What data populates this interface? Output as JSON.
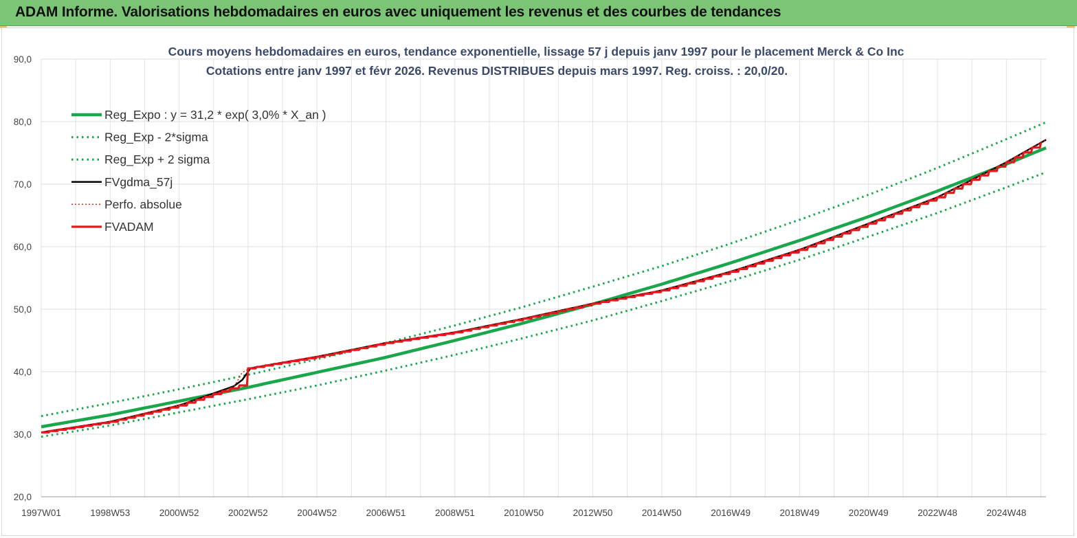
{
  "header": {
    "title": "ADAM Informe. Valorisations hebdomadaires en euros avec uniquement les revenus et des courbes de tendances"
  },
  "chart_data": {
    "type": "line",
    "title": "Cours moyens hebdomadaires en euros, tendance exponentielle, lissage 57 j depuis janv 1997 pour le placement Merck & Co Inc",
    "subtitle": "Cotations entre janv 1997 et févr 2026. Revenus DISTRIBUES depuis mars 1997. Reg. croiss. : 20,0/20.",
    "xlabel": "",
    "ylabel": "",
    "ylim": [
      20,
      90
    ],
    "yticks": [
      "20,0",
      "30,0",
      "40,0",
      "50,0",
      "60,0",
      "70,0",
      "80,0",
      "90,0"
    ],
    "xlim": [
      1997.0,
      2026.15
    ],
    "xticks": [
      {
        "label": "1997W01",
        "x": 1997.0
      },
      {
        "label": "1998W53",
        "x": 1999.0
      },
      {
        "label": "2000W52",
        "x": 2001.0
      },
      {
        "label": "2002W52",
        "x": 2003.0
      },
      {
        "label": "2004W52",
        "x": 2005.0
      },
      {
        "label": "2006W51",
        "x": 2007.0
      },
      {
        "label": "2008W51",
        "x": 2009.0
      },
      {
        "label": "2010W50",
        "x": 2011.0
      },
      {
        "label": "2012W50",
        "x": 2013.0
      },
      {
        "label": "2014W50",
        "x": 2015.0
      },
      {
        "label": "2016W49",
        "x": 2017.0
      },
      {
        "label": "2018W49",
        "x": 2019.0
      },
      {
        "label": "2020W49",
        "x": 2021.0
      },
      {
        "label": "2022W48",
        "x": 2023.0
      },
      {
        "label": "2024W48",
        "x": 2025.0
      }
    ],
    "grid": true,
    "legend_position": "top-left",
    "series": [
      {
        "name": "Reg_Expo : y = 31,2 * exp( 3,0% *  X_an )",
        "style": "solid-thick",
        "color": "#1aa64b",
        "x": [
          1997,
          1999,
          2001,
          2003,
          2005,
          2007,
          2009,
          2011,
          2013,
          2015,
          2017,
          2019,
          2021,
          2023,
          2025,
          2026.15
        ],
        "values": [
          31.2,
          33.1,
          35.3,
          37.5,
          39.9,
          42.3,
          45.0,
          47.8,
          50.8,
          54.0,
          57.4,
          61.0,
          64.8,
          68.9,
          73.2,
          75.8
        ]
      },
      {
        "name": "Reg_Exp - 2*sigma",
        "style": "dotted",
        "color": "#1aa64b",
        "x": [
          1997,
          1999,
          2001,
          2003,
          2005,
          2007,
          2009,
          2011,
          2013,
          2015,
          2017,
          2019,
          2021,
          2023,
          2025,
          2026.15
        ],
        "values": [
          29.6,
          31.4,
          33.5,
          35.6,
          37.8,
          40.2,
          42.7,
          45.4,
          48.2,
          51.3,
          54.5,
          57.9,
          61.6,
          65.4,
          69.5,
          71.9
        ]
      },
      {
        "name": "Reg_Exp + 2 sigma",
        "style": "dotted",
        "color": "#1aa64b",
        "x": [
          1997,
          1999,
          2001,
          2003,
          2005,
          2007,
          2009,
          2011,
          2013,
          2015,
          2017,
          2019,
          2021,
          2023,
          2025,
          2026.15
        ],
        "values": [
          32.9,
          35.0,
          37.2,
          39.5,
          42.0,
          44.6,
          47.4,
          50.4,
          53.6,
          56.9,
          60.5,
          64.3,
          68.3,
          72.6,
          77.2,
          79.9
        ]
      },
      {
        "name": "FVgdma_57j",
        "style": "solid",
        "color": "#000000",
        "x": [
          1997,
          1999,
          2001,
          2002.7,
          2002.85,
          2003.0,
          2005,
          2007,
          2009,
          2011,
          2013,
          2015,
          2017,
          2019,
          2021,
          2023,
          2025,
          2026.15
        ],
        "values": [
          30.3,
          32.0,
          34.6,
          37.9,
          38.8,
          40.5,
          42.4,
          44.6,
          46.3,
          48.5,
          50.9,
          53.0,
          56.0,
          59.5,
          63.7,
          67.9,
          73.5,
          77.1
        ]
      },
      {
        "name": "Perfo. absolue",
        "style": "dotted-thin",
        "color": "#e31a1c",
        "x": [
          1997,
          1999,
          2001,
          2002.75,
          2002.85,
          2005,
          2007,
          2009,
          2011,
          2013,
          2015,
          2017,
          2019,
          2021,
          2023,
          2025,
          2026.15
        ],
        "values": [
          30.3,
          32.0,
          34.6,
          37.8,
          40.4,
          42.4,
          44.6,
          46.3,
          48.5,
          50.9,
          53.0,
          56.0,
          59.5,
          63.7,
          67.9,
          73.5,
          77.1
        ]
      },
      {
        "name": "FVADAM",
        "style": "solid-thick",
        "color": "#e31a1c",
        "x": [
          1997,
          1999,
          2001,
          2002.75,
          2002.85,
          2005,
          2007,
          2009,
          2011,
          2013,
          2015,
          2017,
          2019,
          2021,
          2023,
          2025,
          2026.15
        ],
        "values": [
          30.3,
          32.0,
          34.6,
          37.8,
          40.4,
          42.4,
          44.6,
          46.3,
          48.5,
          50.9,
          53.0,
          56.0,
          59.5,
          63.7,
          67.9,
          73.5,
          77.1
        ]
      }
    ]
  }
}
